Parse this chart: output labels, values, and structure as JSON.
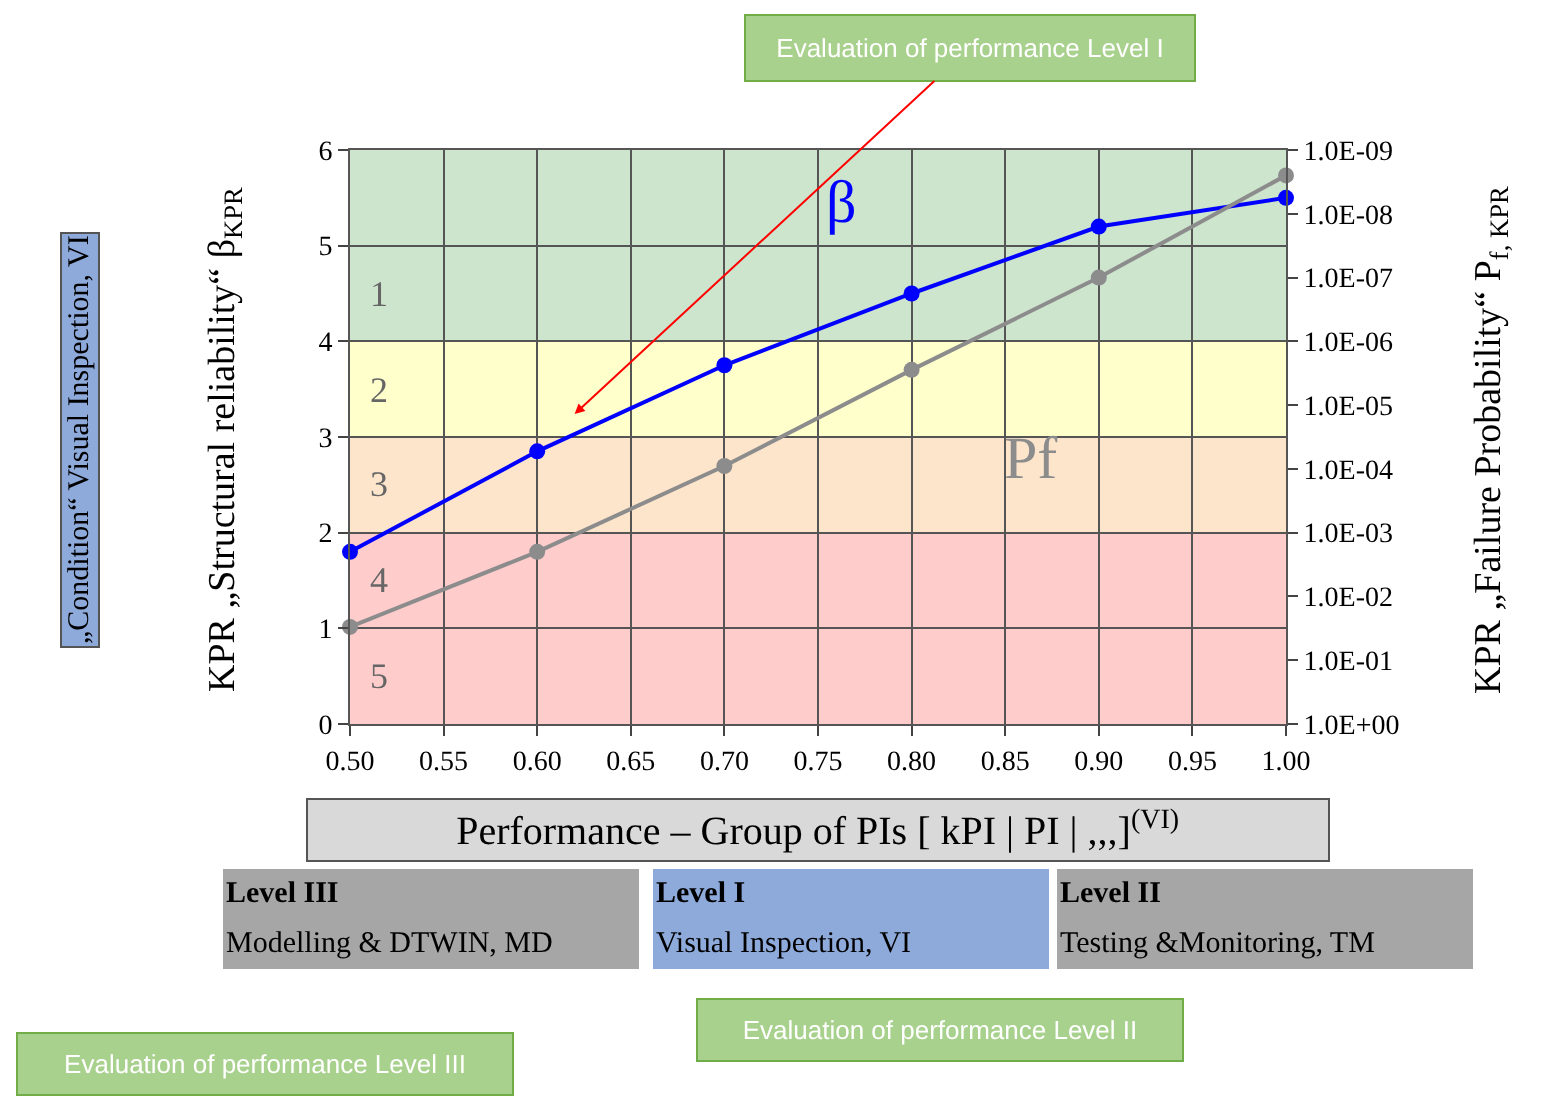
{
  "chart_data": {
    "type": "line",
    "xlabel": "Performance – Group of PIs [ kPI | PI | ,,,]$^{(VI)}$",
    "ylabel": "KPR „Structural reliability“ β$_{KPR}$",
    "y2label": "KPR „Failure Probability“ P$_{f, KPR}$",
    "x": [
      0.5,
      0.6,
      0.7,
      0.8,
      0.9,
      1.0
    ],
    "series": [
      {
        "name": "β",
        "color": "#0000ff",
        "values": [
          1.8,
          2.85,
          3.75,
          4.5,
          5.2,
          5.5
        ]
      },
      {
        "name": "Pf",
        "color": "#8c8c8c",
        "axis": "y2",
        "values": [
          0.03,
          0.002,
          9e-05,
          2.8e-06,
          1e-07,
          2.5e-09
        ]
      }
    ],
    "xlim": [
      0.5,
      1.0
    ],
    "xticks": [
      {
        "value": 0.5,
        "label": "0.50"
      },
      {
        "value": 0.55,
        "label": "0.55"
      },
      {
        "value": 0.6,
        "label": "0.60"
      },
      {
        "value": 0.65,
        "label": "0.65"
      },
      {
        "value": 0.7,
        "label": "0.70"
      },
      {
        "value": 0.75,
        "label": "0.75"
      },
      {
        "value": 0.8,
        "label": "0.80"
      },
      {
        "value": 0.85,
        "label": "0.85"
      },
      {
        "value": 0.9,
        "label": "0.90"
      },
      {
        "value": 0.95,
        "label": "0.95"
      },
      {
        "value": 1.0,
        "label": "1.00"
      }
    ],
    "ylim": [
      0,
      6
    ],
    "yticks": [
      0,
      1,
      2,
      3,
      4,
      5,
      6
    ],
    "y2lim": [
      1,
      1e-09
    ],
    "y2ticks": [
      {
        "value": 1,
        "label": "1.0E+00"
      },
      {
        "value": 0.1,
        "label": "1.0E-01"
      },
      {
        "value": 0.01,
        "label": "1.0E-02"
      },
      {
        "value": 0.001,
        "label": "1.0E-03"
      },
      {
        "value": 0.0001,
        "label": "1.0E-04"
      },
      {
        "value": 1e-05,
        "label": "1.0E-05"
      },
      {
        "value": 1e-06,
        "label": "1.0E-06"
      },
      {
        "value": 1e-07,
        "label": "1.0E-07"
      },
      {
        "value": 1e-08,
        "label": "1.0E-08"
      },
      {
        "value": 1e-09,
        "label": "1.0E-09"
      }
    ],
    "log": "y2",
    "grid": true,
    "legend": false,
    "marker": "circle",
    "line_style": "solid",
    "bands": [
      {
        "axis": "y",
        "from": 0,
        "to": 2,
        "color": "#ffcccc"
      },
      {
        "axis": "y",
        "from": 2,
        "to": 3,
        "color": "#fde5cc"
      },
      {
        "axis": "y",
        "from": 3,
        "to": 4,
        "color": "#ffffcc"
      },
      {
        "axis": "y",
        "from": 4,
        "to": 6,
        "color": "#cde4cd"
      }
    ],
    "annotations": [
      "Evaluation of performance Level I",
      "Evaluation of performance Level II",
      "Evaluation of performance Level III",
      "Level III",
      "Modelling & DTWIN, MD",
      "Level I",
      "Visual Inspection, VI",
      "Level II",
      "Testing &Monitoring, TM",
      "„Condition“ Visual Inspection, VI",
      "1",
      "2",
      "3",
      "4",
      "5"
    ]
  }
}
